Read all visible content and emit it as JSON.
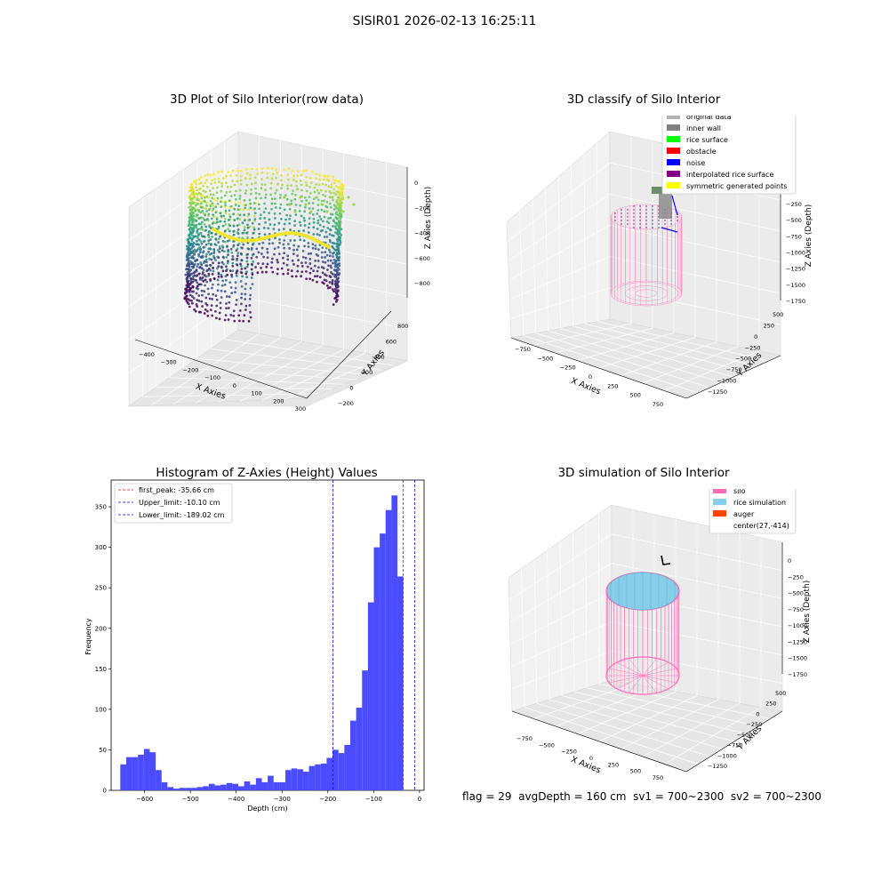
{
  "suptitle": "SISIR01 2026-02-13 16:25:11",
  "footer": {
    "flag": "flag = 29",
    "avg_depth": "avgDepth = 160 cm",
    "sv1": "sv1 = 700~2300",
    "sv2": "sv2 = 700~2300"
  },
  "colors": {
    "hist_bar": "#4b4bff",
    "first_peak": "#ff0000",
    "limit_lines": "#0000ff",
    "silo": "#ff69b4",
    "rice_simulation": "#87ceeb",
    "auger": "#ff4500",
    "pane_gray": "#f2f2f2"
  },
  "chart_data": [
    {
      "type": "scatter",
      "panel": "raw",
      "title": "3D Plot of Silo Interior(row data)",
      "projection": "3d",
      "colormap": "viridis",
      "xlabel": "X Axies",
      "ylabel": "Y Axies",
      "zlabel": "Z Axies (Depth)",
      "x_ticks": [
        "−400",
        "−300",
        "−200",
        "−100",
        "0",
        "100",
        "200",
        "300"
      ],
      "y_ticks": [
        "−200",
        "0",
        "200",
        "400",
        "600",
        "800"
      ],
      "z_ticks": [
        "0",
        "−200",
        "−400",
        "−600",
        "−800"
      ],
      "xlim": [
        -450,
        320
      ],
      "ylim": [
        -250,
        900
      ],
      "zlim": [
        -900,
        0
      ]
    },
    {
      "type": "scatter",
      "panel": "classify",
      "title": "3D classify of Silo Interior",
      "projection": "3d",
      "xlabel": "X Axies",
      "ylabel": "Y Axies",
      "zlabel": "Z Axies (Depth)",
      "x_ticks": [
        "−750",
        "−500",
        "−250",
        "0",
        "250",
        "500",
        "750"
      ],
      "y_ticks": [
        "−1250",
        "−1000",
        "−750",
        "−500",
        "−250",
        "0",
        "250",
        "500"
      ],
      "z_ticks": [
        "−250",
        "−500",
        "−750",
        "−1000",
        "−1250",
        "−1500",
        "−1750"
      ],
      "legend": [
        {
          "label": "original data",
          "color": "#b3b3b3"
        },
        {
          "label": "inner wall",
          "color": "#808080"
        },
        {
          "label": "rice surface",
          "color": "#00ff00"
        },
        {
          "label": "obstacle",
          "color": "#ff0000"
        },
        {
          "label": "noise",
          "color": "#0000ff"
        },
        {
          "label": "interpolated rice surface",
          "color": "#800080"
        },
        {
          "label": "symmetric generated points",
          "color": "#ffff00"
        }
      ],
      "legend_loc": "upper right"
    },
    {
      "type": "bar",
      "panel": "histogram",
      "title": "Histogram of Z-Axies (Height) Values",
      "xlabel": "Depth (cm)",
      "ylabel": "Frequency",
      "xlim": [
        -673,
        10
      ],
      "ylim": [
        0,
        383
      ],
      "x_ticks": [
        -600,
        -500,
        -400,
        -300,
        -200,
        -100,
        0
      ],
      "x_tick_labels": [
        "−600",
        "−500",
        "−400",
        "−300",
        "−200",
        "−100",
        "0"
      ],
      "y_ticks": [
        0,
        50,
        100,
        150,
        200,
        250,
        300,
        350
      ],
      "bin_start": -653,
      "bin_width": 12.87,
      "values": [
        32,
        41,
        41,
        44,
        51,
        47,
        25,
        10,
        4,
        2,
        3,
        3,
        3,
        4,
        5,
        8,
        6,
        7,
        9,
        8,
        5,
        11,
        7,
        15,
        10,
        18,
        10,
        10,
        25,
        27,
        26,
        23,
        30,
        32,
        33,
        40,
        50,
        46,
        56,
        86,
        102,
        148,
        232,
        300,
        317,
        346,
        364,
        264
      ],
      "vlines": [
        {
          "label": "first_peak: -35.66 cm",
          "x": -35.66,
          "color": "#ff0000"
        },
        {
          "label": "Upper_limit: -10.10 cm",
          "x": -10.1,
          "color": "#0000ff"
        },
        {
          "label": "Lower_limit: -189.02 cm",
          "x": -189.02,
          "color": "#0000ff"
        }
      ],
      "legend_loc": "upper left"
    },
    {
      "type": "scatter",
      "panel": "simulation",
      "title": "3D simulation of Silo Interior",
      "projection": "3d",
      "xlabel": "X Axies",
      "ylabel": "Y Axies",
      "zlabel": "Z Axies (Depth)",
      "x_ticks": [
        "−750",
        "−500",
        "−250",
        "0",
        "250",
        "500",
        "750"
      ],
      "y_ticks": [
        "−1250",
        "−1000",
        "−750",
        "−500",
        "−250",
        "0",
        "250",
        "500"
      ],
      "z_ticks": [
        "0",
        "−250",
        "−500",
        "−750",
        "−1000",
        "−1250",
        "−1500",
        "−1750"
      ],
      "legend": [
        {
          "label": "silo",
          "color": "#ff69b4"
        },
        {
          "label": "rice simulation",
          "color": "#87ceeb"
        },
        {
          "label": "auger",
          "color": "#ff4500"
        },
        {
          "label": "center(27,-414)",
          "color": ""
        }
      ],
      "legend_loc": "upper right"
    }
  ]
}
